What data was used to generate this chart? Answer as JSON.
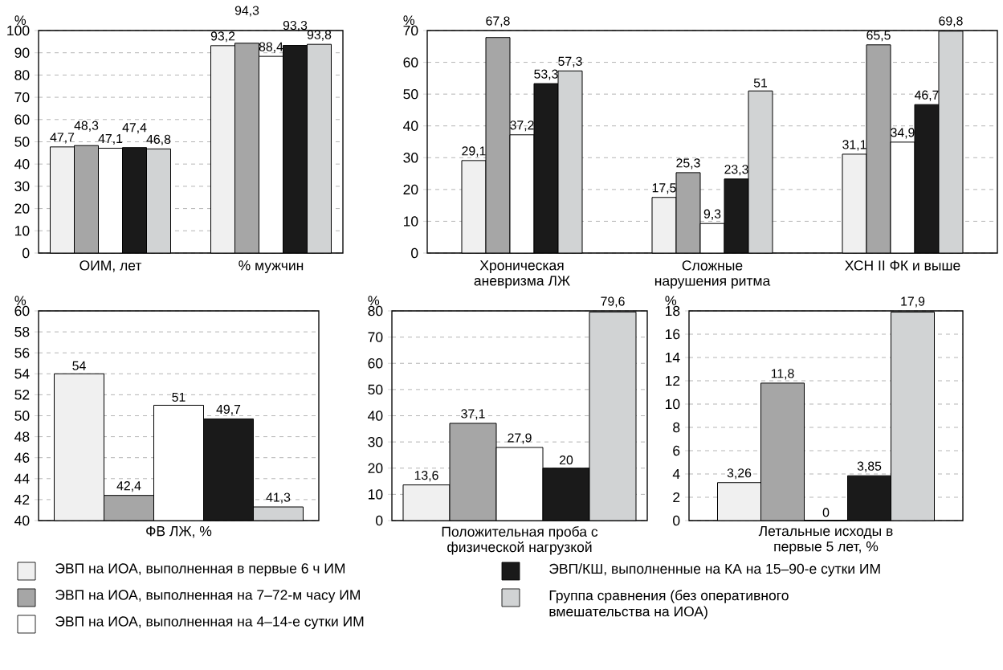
{
  "chart_data": [
    {
      "type": "bar",
      "ylabel": "%",
      "categories": [
        "ОИМ, лет",
        "% мужчин"
      ],
      "ylim": [
        0,
        100
      ],
      "yticks": [
        0,
        10,
        20,
        30,
        40,
        50,
        60,
        70,
        80,
        90,
        100
      ],
      "grid": "y",
      "legend": "bottom",
      "series": [
        {
          "name": "ЭВП на ИОА, выполненная в первые 6 ч ИМ",
          "color": "#f0f0f0",
          "values": [
            47.7,
            93.2
          ],
          "value_labels": [
            "47,7",
            "93,2"
          ]
        },
        {
          "name": "ЭВП на ИОА, выполненная на 7–72-м часу ИМ",
          "color": "#a6a6a6",
          "values": [
            48.3,
            94.3
          ],
          "value_labels": [
            "48,3",
            "94,3"
          ]
        },
        {
          "name": "ЭВП на ИОА, выполненная на 4–14-е сутки ИМ",
          "color": "#ffffff",
          "values": [
            47.1,
            88.4
          ],
          "value_labels": [
            "47,1",
            "88,4"
          ]
        },
        {
          "name": "ЭВП/КШ, выполненные на КА на 15–90-е сутки ИМ",
          "color": "#1a1a1a",
          "values": [
            47.4,
            93.3
          ],
          "value_labels": [
            "47,4",
            "93,3"
          ]
        },
        {
          "name": "Группа сравнения (без оперативного вмешательства на ИОА)",
          "color": "#d1d3d4",
          "values": [
            46.8,
            93.8
          ],
          "value_labels": [
            "46,8",
            "93,8"
          ]
        }
      ]
    },
    {
      "type": "bar",
      "ylabel": "%",
      "categories": [
        "Хроническая аневризма ЛЖ",
        "Сложные нарушения ритма",
        "ХСН II ФК и выше"
      ],
      "ylim": [
        0,
        70
      ],
      "yticks": [
        0,
        10,
        20,
        30,
        40,
        50,
        60,
        70
      ],
      "grid": "y",
      "series": [
        {
          "color": "#f0f0f0",
          "values": [
            29.1,
            17.5,
            31.1
          ],
          "value_labels": [
            "29,1",
            "17,5",
            "31,1"
          ]
        },
        {
          "color": "#a6a6a6",
          "values": [
            67.8,
            25.3,
            65.5
          ],
          "value_labels": [
            "67,8",
            "25,3",
            "65,5"
          ]
        },
        {
          "color": "#ffffff",
          "values": [
            37.2,
            9.3,
            34.9
          ],
          "value_labels": [
            "37,2",
            "9,3",
            "34,9"
          ]
        },
        {
          "color": "#1a1a1a",
          "values": [
            53.3,
            23.3,
            46.7
          ],
          "value_labels": [
            "53,3",
            "23,3",
            "46,7"
          ]
        },
        {
          "color": "#d1d3d4",
          "values": [
            57.3,
            51,
            69.8
          ],
          "value_labels": [
            "57,3",
            "51",
            "69,8"
          ]
        }
      ]
    },
    {
      "type": "bar",
      "ylabel": "%",
      "xlabel": "ФВ ЛЖ, %",
      "categories": [
        null,
        null,
        null,
        null,
        null
      ],
      "ylim": [
        40,
        60
      ],
      "yticks": [
        40,
        42,
        44,
        46,
        48,
        50,
        52,
        54,
        56,
        58,
        60
      ],
      "grid": "y",
      "values": [
        54,
        42.4,
        51,
        49.7,
        41.3
      ],
      "colors": [
        "#f0f0f0",
        "#a6a6a6",
        "#ffffff",
        "#1a1a1a",
        "#d1d3d4"
      ],
      "value_labels": [
        "54",
        "42,4",
        "51",
        "49,7",
        "41,3"
      ]
    },
    {
      "type": "bar",
      "ylabel": "%",
      "xlabel": "Положительная проба с физической нагрузкой",
      "categories": [
        null,
        null,
        null,
        null,
        null
      ],
      "ylim": [
        0,
        80
      ],
      "yticks": [
        0,
        10,
        20,
        30,
        40,
        50,
        60,
        70,
        80
      ],
      "grid": "y",
      "values": [
        13.6,
        37.1,
        27.9,
        20,
        79.6
      ],
      "colors": [
        "#f0f0f0",
        "#a6a6a6",
        "#ffffff",
        "#1a1a1a",
        "#d1d3d4"
      ],
      "value_labels": [
        "13,6",
        "37,1",
        "27,9",
        "20",
        "79,6"
      ]
    },
    {
      "type": "bar",
      "ylabel": "%",
      "xlabel": "Летальные исходы в первые 5 лет, %",
      "categories": [
        null,
        null,
        null,
        null,
        null
      ],
      "ylim": [
        0,
        18
      ],
      "yticks": [
        0,
        2,
        4,
        6,
        8,
        10,
        12,
        14,
        16,
        18
      ],
      "grid": "y",
      "values": [
        3.26,
        11.8,
        0,
        3.85,
        17.9
      ],
      "colors": [
        "#f0f0f0",
        "#a6a6a6",
        "#ffffff",
        "#1a1a1a",
        "#d1d3d4"
      ],
      "value_labels": [
        "3,26",
        "11,8",
        "0",
        "3,85",
        "17,9"
      ]
    }
  ]
}
